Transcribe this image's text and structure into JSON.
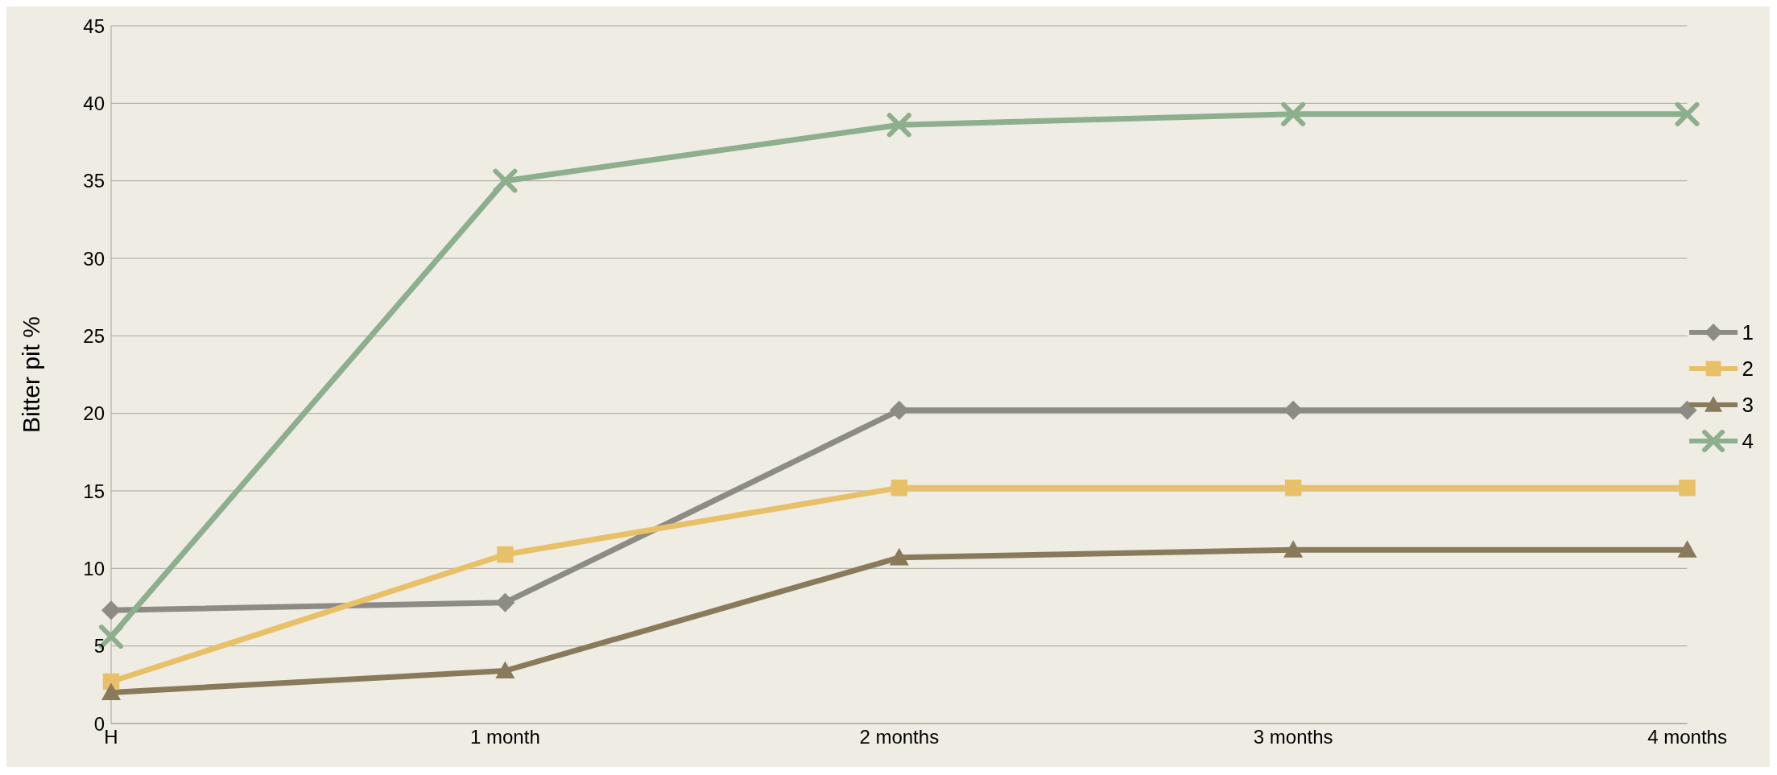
{
  "chart_data": {
    "type": "line",
    "ylabel": "Bitter pit %",
    "categories": [
      "H",
      "1 month",
      "2 months",
      "3 months",
      "4 months"
    ],
    "series": [
      {
        "name": "1",
        "color": "#8c8c85",
        "marker": "diamond",
        "values": [
          7.3,
          7.8,
          20.2,
          20.2,
          20.2
        ]
      },
      {
        "name": "2",
        "color": "#e8c068",
        "marker": "square",
        "values": [
          2.7,
          10.9,
          15.2,
          15.2,
          15.2
        ]
      },
      {
        "name": "3",
        "color": "#8a7a5c",
        "marker": "triangle",
        "values": [
          2.0,
          3.4,
          10.7,
          11.2,
          11.2
        ]
      },
      {
        "name": "4",
        "color": "#8daf8e",
        "marker": "cross",
        "values": [
          5.6,
          35.0,
          38.6,
          39.3,
          39.3
        ]
      }
    ],
    "ylim": [
      0,
      45
    ],
    "yticks": [
      0,
      5,
      10,
      15,
      20,
      25,
      30,
      35,
      40,
      45
    ],
    "grid": "y",
    "legend": "right",
    "line_style": "solid"
  }
}
